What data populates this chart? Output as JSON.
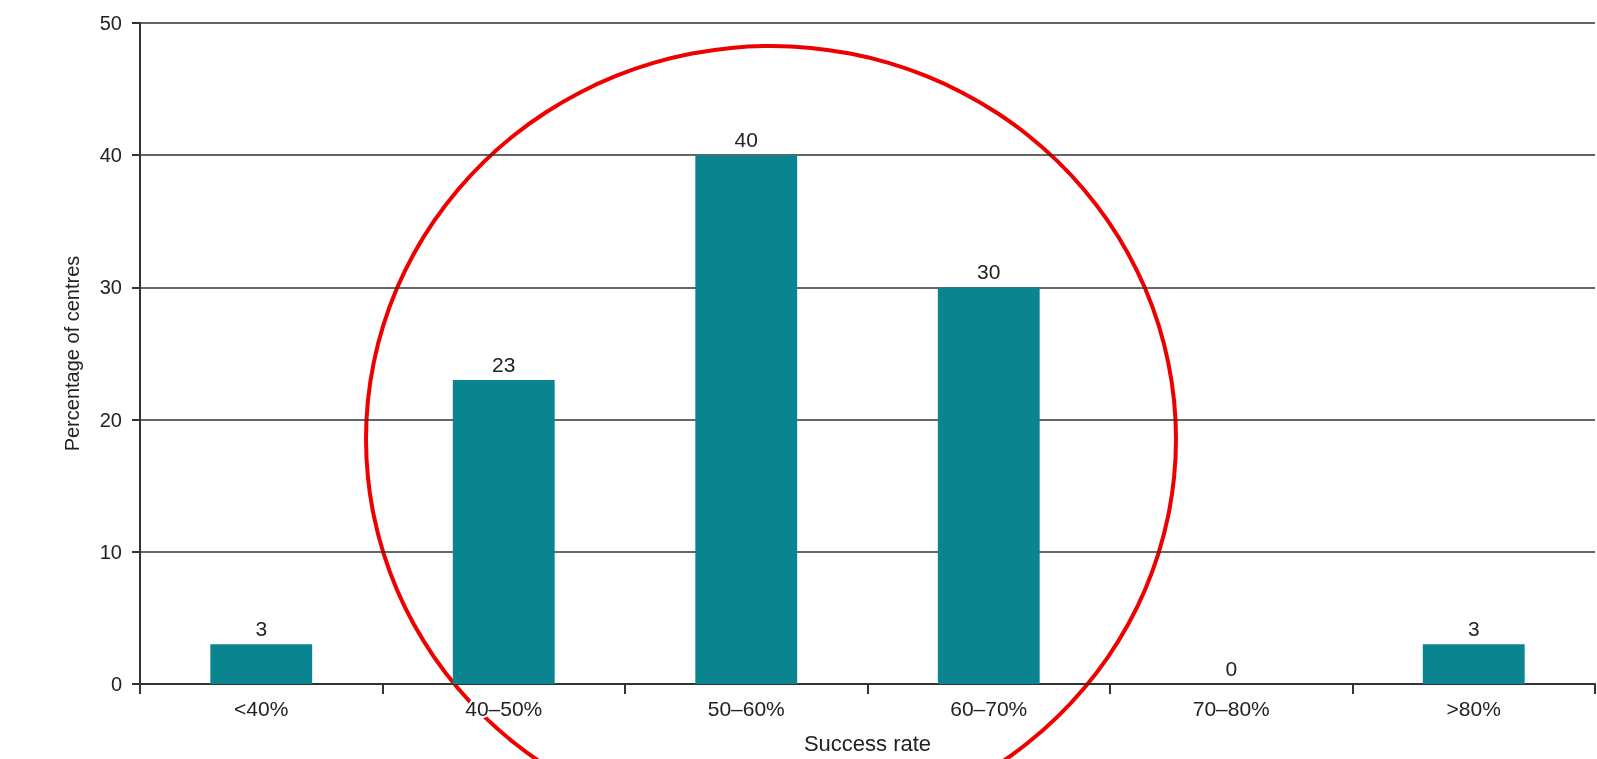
{
  "chart_data": {
    "type": "bar",
    "xlabel": "Success rate",
    "ylabel": "Percentage of centres",
    "categories": [
      "<40%",
      "40–50%",
      "50–60%",
      "60–70%",
      "70–80%",
      ">80%"
    ],
    "values": [
      3,
      23,
      40,
      30,
      0,
      3
    ],
    "color": "#0a8590",
    "ylim": [
      0,
      50
    ],
    "yticks": [
      0,
      10,
      20,
      30,
      40,
      50
    ],
    "grid": "y",
    "data_labels": true
  }
}
